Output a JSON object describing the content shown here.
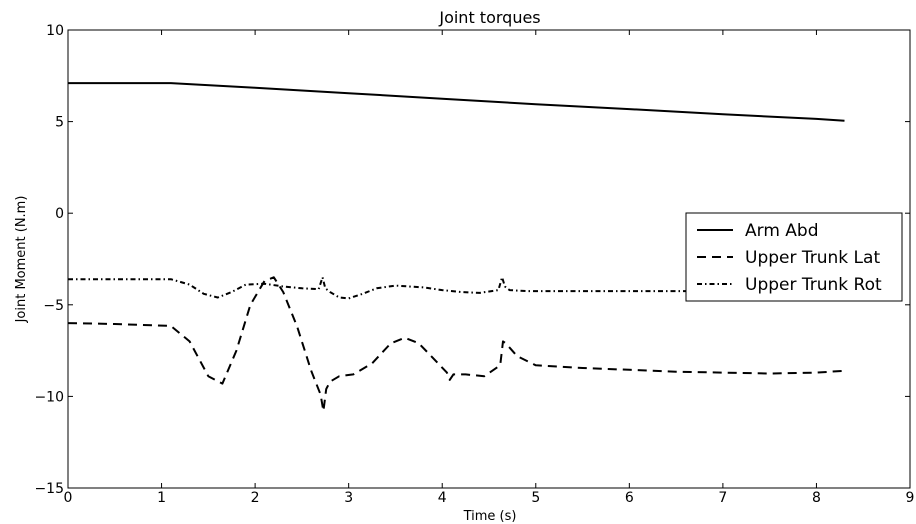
{
  "chart_data": {
    "type": "line",
    "title": "Joint torques",
    "xlabel": "Time (s)",
    "ylabel": "Joint Moment (N.m)",
    "xlim": [
      0,
      9
    ],
    "ylim": [
      -15,
      10
    ],
    "xticks": [
      0,
      1,
      2,
      3,
      4,
      5,
      6,
      7,
      8,
      9
    ],
    "yticks": [
      -15,
      -10,
      -5,
      0,
      5,
      10
    ],
    "xtick_labels": [
      "0",
      "1",
      "2",
      "3",
      "4",
      "5",
      "6",
      "7",
      "8",
      "9"
    ],
    "ytick_labels": [
      "−15",
      "−10",
      "−5",
      "0",
      "5",
      "10"
    ],
    "grid": false,
    "legend_position": "center-right",
    "series": [
      {
        "name": "Arm Abd",
        "style": "solid",
        "color": "#000000",
        "x": [
          0,
          1.1,
          2,
          3,
          4,
          5,
          6,
          7,
          8,
          8.3
        ],
        "y": [
          7.1,
          7.1,
          6.85,
          6.55,
          6.25,
          5.95,
          5.68,
          5.4,
          5.15,
          5.05
        ]
      },
      {
        "name": "Upper Trunk Lat",
        "style": "dashed",
        "color": "#000000",
        "x": [
          0,
          0.5,
          1.1,
          1.3,
          1.5,
          1.65,
          1.8,
          1.95,
          2.1,
          2.2,
          2.3,
          2.45,
          2.6,
          2.7,
          2.73,
          2.76,
          2.8,
          2.9,
          3.05,
          3.25,
          3.45,
          3.6,
          3.75,
          3.9,
          4.05,
          4.08,
          4.12,
          4.25,
          4.45,
          4.62,
          4.65,
          4.68,
          4.8,
          5.0,
          5.5,
          6.0,
          6.5,
          7.0,
          7.5,
          8.0,
          8.3
        ],
        "y": [
          -6.0,
          -6.05,
          -6.15,
          -7.0,
          -8.9,
          -9.3,
          -7.5,
          -5.0,
          -3.7,
          -3.5,
          -4.3,
          -6.2,
          -8.6,
          -9.9,
          -10.8,
          -9.6,
          -9.2,
          -8.9,
          -8.8,
          -8.2,
          -7.1,
          -6.8,
          -7.1,
          -7.9,
          -8.7,
          -9.1,
          -8.8,
          -8.8,
          -8.9,
          -8.3,
          -7.0,
          -7.1,
          -7.8,
          -8.3,
          -8.45,
          -8.55,
          -8.65,
          -8.7,
          -8.75,
          -8.7,
          -8.6
        ]
      },
      {
        "name": "Upper Trunk Rot",
        "style": "dashdot",
        "color": "#000000",
        "x": [
          0,
          0.5,
          1.1,
          1.3,
          1.45,
          1.6,
          1.75,
          1.9,
          2.1,
          2.3,
          2.5,
          2.68,
          2.72,
          2.75,
          2.8,
          2.9,
          3.0,
          3.15,
          3.3,
          3.5,
          3.8,
          4.0,
          4.2,
          4.4,
          4.6,
          4.64,
          4.67,
          4.72,
          4.9,
          5.5,
          6.0,
          6.5,
          6.75
        ],
        "y": [
          -3.6,
          -3.6,
          -3.6,
          -3.9,
          -4.4,
          -4.6,
          -4.3,
          -3.9,
          -3.85,
          -4.0,
          -4.1,
          -4.15,
          -3.5,
          -4.1,
          -4.3,
          -4.6,
          -4.65,
          -4.4,
          -4.1,
          -3.95,
          -4.05,
          -4.2,
          -4.3,
          -4.35,
          -4.2,
          -3.5,
          -4.0,
          -4.2,
          -4.25,
          -4.25,
          -4.25,
          -4.25,
          -4.25
        ]
      }
    ]
  }
}
